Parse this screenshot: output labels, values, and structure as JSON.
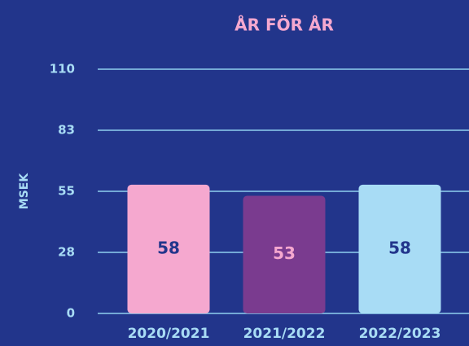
{
  "chart_data": {
    "type": "bar",
    "title": "ÅR FÖR ÅR",
    "y_label": "MSEK",
    "categories": [
      "2020/2021",
      "2021/2022",
      "2022/2023"
    ],
    "values": [
      58,
      53,
      58
    ],
    "colors": [
      "#f5a8cf",
      "#7a3b8f",
      "#a8dcf5"
    ],
    "value_label_colors": [
      "#22358b",
      "#f5a8cf",
      "#22358b"
    ],
    "ylim": [
      0,
      110
    ],
    "yticks": [
      0,
      {
        "value": 27.5,
        "label": "28"
      },
      55,
      {
        "value": 82.5,
        "label": "83"
      },
      110
    ],
    "grid": true
  }
}
